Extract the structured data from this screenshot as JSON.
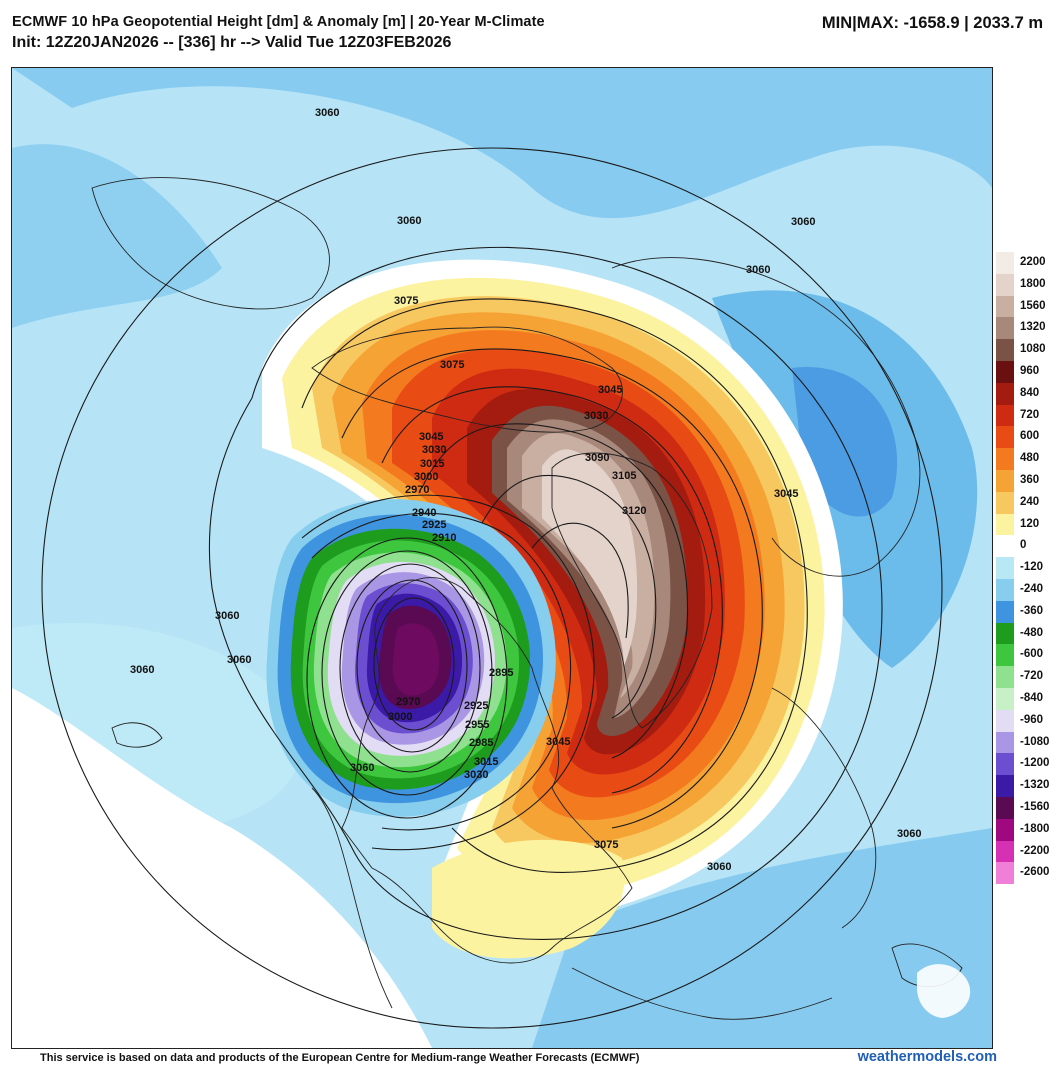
{
  "header": {
    "title": "ECMWF 10 hPa Geopotential Height [dm] & Anomaly [m] | 20-Year M-Climate",
    "init": "Init: 12Z20JAN2026 -- [336] hr --> Valid Tue 12Z03FEB2026",
    "minmax": "MIN|MAX: -1658.9 | 2033.7 m"
  },
  "map": {
    "contour_labels": [
      "3060",
      "3075",
      "3045",
      "3030",
      "3015",
      "3000",
      "2970",
      "2940",
      "2925",
      "2910",
      "2985",
      "2955",
      "2895",
      "3090",
      "3105",
      "3120"
    ]
  },
  "legend": {
    "entries": [
      {
        "label": "2200",
        "color": "#f2ebe6"
      },
      {
        "label": "1800",
        "color": "#e3d3ca"
      },
      {
        "label": "1560",
        "color": "#c9aea2"
      },
      {
        "label": "1320",
        "color": "#a8887b"
      },
      {
        "label": "1080",
        "color": "#7a5246"
      },
      {
        "label": "960",
        "color": "#6b1010"
      },
      {
        "label": "840",
        "color": "#a41b10"
      },
      {
        "label": "720",
        "color": "#cf2a12"
      },
      {
        "label": "600",
        "color": "#e84c14"
      },
      {
        "label": "480",
        "color": "#f37a1f"
      },
      {
        "label": "360",
        "color": "#f6a335"
      },
      {
        "label": "240",
        "color": "#f8c860"
      },
      {
        "label": "120",
        "color": "#fbf3a0"
      },
      {
        "label": "0",
        "color": "#ffffff"
      },
      {
        "label": "-120",
        "color": "#b9e8f5"
      },
      {
        "label": "-240",
        "color": "#86cdee"
      },
      {
        "label": "-360",
        "color": "#3f94df"
      },
      {
        "label": "-480",
        "color": "#1d9c1d"
      },
      {
        "label": "-600",
        "color": "#3fc63f"
      },
      {
        "label": "-720",
        "color": "#8fe08f"
      },
      {
        "label": "-840",
        "color": "#c7f0c7"
      },
      {
        "label": "-960",
        "color": "#e2dcf4"
      },
      {
        "label": "-1080",
        "color": "#a996e4"
      },
      {
        "label": "-1200",
        "color": "#6b4fd0"
      },
      {
        "label": "-1320",
        "color": "#3b1aa8"
      },
      {
        "label": "-1560",
        "color": "#5a0a52"
      },
      {
        "label": "-1800",
        "color": "#a0087f"
      },
      {
        "label": "-2200",
        "color": "#d631b4"
      },
      {
        "label": "-2600",
        "color": "#ef7fd7"
      }
    ]
  },
  "footer": {
    "note": "This service is based on data and products of the European Centre for Medium-range Weather Forecasts (ECMWF)",
    "brand": "weathermodels.com"
  }
}
